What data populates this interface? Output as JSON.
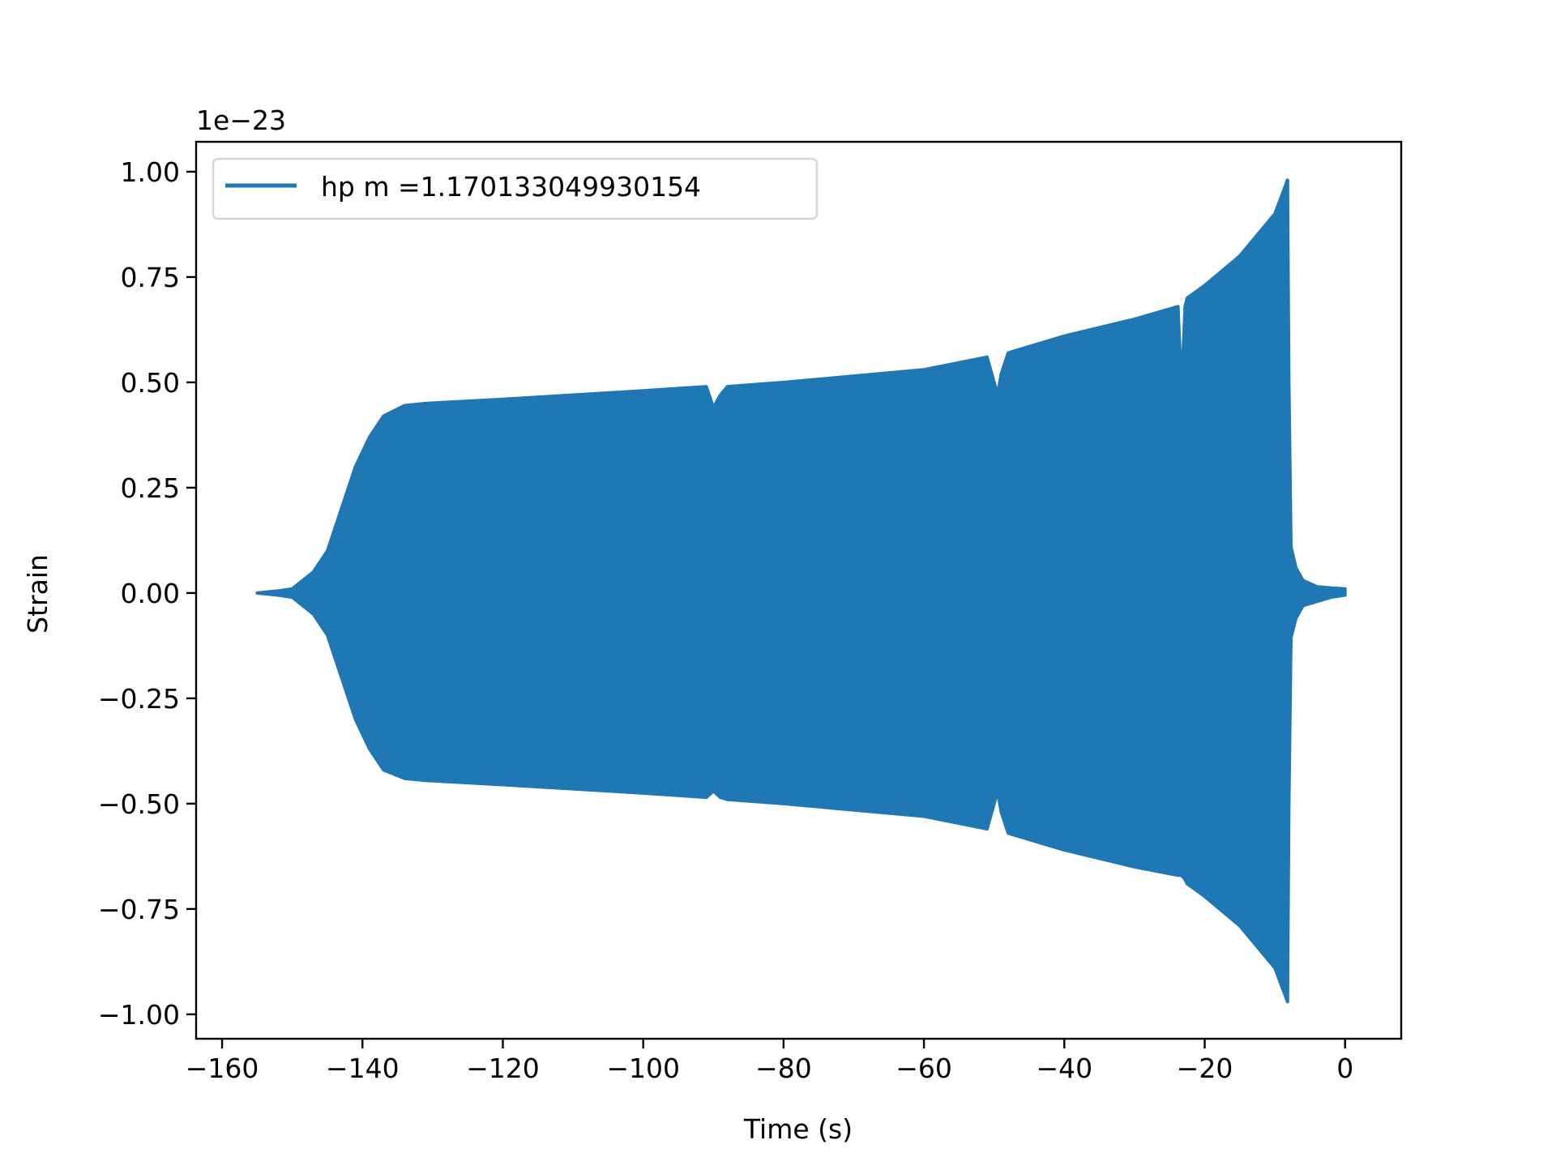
{
  "chart_data": {
    "type": "area",
    "title": "",
    "xlabel": "Time (s)",
    "ylabel": "Strain",
    "y_offset_label": "1e−23",
    "xlim": [
      -163.7,
      8.0
    ],
    "ylim": [
      -1.058,
      1.071
    ],
    "grid": false,
    "legend_placement": "upper-left",
    "xticks": [
      -160,
      -140,
      -120,
      -100,
      -80,
      -60,
      -40,
      -20,
      0
    ],
    "xtick_labels": [
      "−160",
      "−140",
      "−120",
      "−100",
      "−80",
      "−60",
      "−40",
      "−20",
      "0"
    ],
    "yticks": [
      1.0,
      0.75,
      0.5,
      0.25,
      0.0,
      -0.25,
      -0.5,
      -0.75,
      -1.0
    ],
    "ytick_labels": [
      "1.00",
      "0.75",
      "0.50",
      "0.25",
      "0.00",
      "−0.25",
      "−0.50",
      "−0.75",
      "−1.00"
    ],
    "series": [
      {
        "name": "hp m =1.170133049930154",
        "color": "#1f77b4",
        "envelope_note_units": "strain ×1e−23",
        "time": [
          -155,
          -152,
          -150,
          -147,
          -145,
          -143,
          -141,
          -139,
          -137,
          -134,
          -131,
          -120,
          -100,
          -91,
          -90,
          -89,
          -88,
          -80,
          -60,
          -51,
          -50,
          -49.5,
          -49,
          -48,
          -40,
          -30,
          -23.8,
          -23.3,
          -22.8,
          -22.5,
          -20,
          -15,
          -12,
          -10,
          -8.2,
          -8.0,
          -7.7,
          -7.0,
          -6.0,
          -4.0,
          -2.0,
          0
        ],
        "upper": [
          0.0,
          0.005,
          0.01,
          0.05,
          0.1,
          0.2,
          0.3,
          0.37,
          0.42,
          0.445,
          0.45,
          0.46,
          0.48,
          0.49,
          0.44,
          0.47,
          0.49,
          0.5,
          0.53,
          0.56,
          0.5,
          0.47,
          0.52,
          0.57,
          0.61,
          0.65,
          0.68,
          0.48,
          0.68,
          0.7,
          0.73,
          0.8,
          0.86,
          0.9,
          0.98,
          0.5,
          0.11,
          0.06,
          0.03,
          0.015,
          0.012,
          0.01
        ],
        "lower": [
          0.0,
          -0.005,
          -0.01,
          -0.05,
          -0.1,
          -0.2,
          -0.3,
          -0.37,
          -0.42,
          -0.44,
          -0.445,
          -0.455,
          -0.475,
          -0.485,
          -0.47,
          -0.485,
          -0.49,
          -0.5,
          -0.53,
          -0.56,
          -0.5,
          -0.47,
          -0.52,
          -0.57,
          -0.61,
          -0.65,
          -0.67,
          -0.67,
          -0.68,
          -0.69,
          -0.72,
          -0.79,
          -0.85,
          -0.89,
          -0.97,
          -0.5,
          -0.106,
          -0.06,
          -0.03,
          -0.02,
          -0.01,
          -0.005
        ]
      }
    ]
  }
}
